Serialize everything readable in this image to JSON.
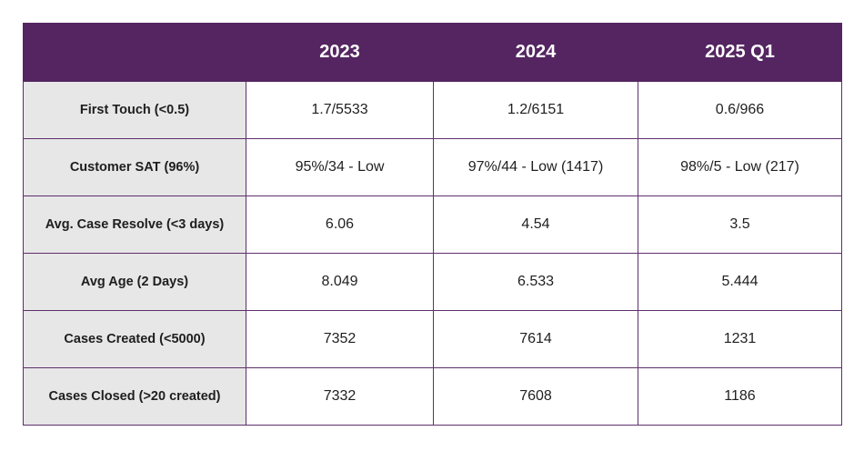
{
  "table": {
    "columns": [
      "",
      "2023",
      "2024",
      "2025 Q1"
    ],
    "rows": [
      {
        "label": "First Touch (<0.5)",
        "values": [
          "1.7/5533",
          "1.2/6151",
          "0.6/966"
        ]
      },
      {
        "label": "Customer SAT (96%)",
        "values": [
          "95%/34 - Low",
          "97%/44 - Low (1417)",
          "98%/5 - Low (217)"
        ]
      },
      {
        "label": "Avg. Case Resolve (<3 days)",
        "values": [
          "6.06",
          "4.54",
          "3.5"
        ]
      },
      {
        "label": "Avg Age (2 Days)",
        "values": [
          "8.049",
          "6.533",
          "5.444"
        ]
      },
      {
        "label": "Cases Created (<5000)",
        "values": [
          "7352",
          "7614",
          "1231"
        ]
      },
      {
        "label": "Cases Closed (>20 created)",
        "values": [
          "7332",
          "7608",
          "1186"
        ]
      }
    ]
  },
  "colors": {
    "header_bg": "#542561",
    "header_text": "#ffffff",
    "label_bg": "#e7e7e7",
    "border": "#5f2f6c"
  }
}
